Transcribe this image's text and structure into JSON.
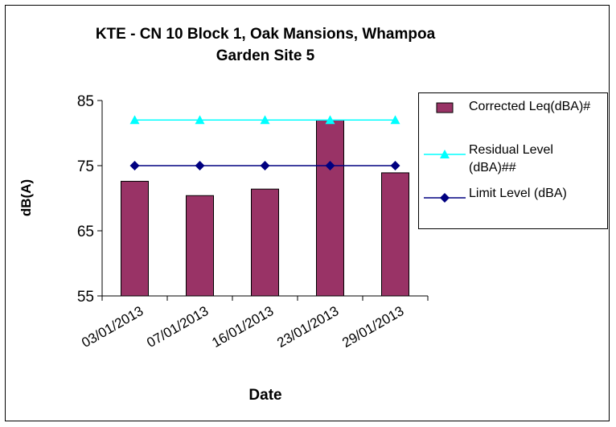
{
  "chart_data": {
    "type": "bar",
    "title": "KTE - CN 10 Block 1, Oak Mansions, Whampoa Garden Site 5",
    "x_label": "Date",
    "y_label": "dB(A)",
    "categories": [
      "03/01/2013",
      "07/01/2013",
      "16/01/2013",
      "23/01/2013",
      "29/01/2013"
    ],
    "series": [
      {
        "name": "Corrected Leq(dBA)#",
        "type": "bar",
        "color": "#993366",
        "values": [
          72.6,
          70.4,
          71.4,
          82,
          73.9
        ]
      },
      {
        "name": "Residual Level (dBA)##",
        "type": "line",
        "marker": "triangle",
        "color": "#00ffff",
        "values": [
          82,
          82,
          82,
          82,
          82
        ]
      },
      {
        "name": "Limit Level (dBA)",
        "type": "line",
        "marker": "diamond",
        "color": "#000080",
        "values": [
          75,
          75,
          75,
          75,
          75
        ]
      }
    ],
    "ylim": [
      55,
      85
    ],
    "yticks": [
      55,
      65,
      75,
      85
    ],
    "grid": false,
    "legend": "right"
  }
}
